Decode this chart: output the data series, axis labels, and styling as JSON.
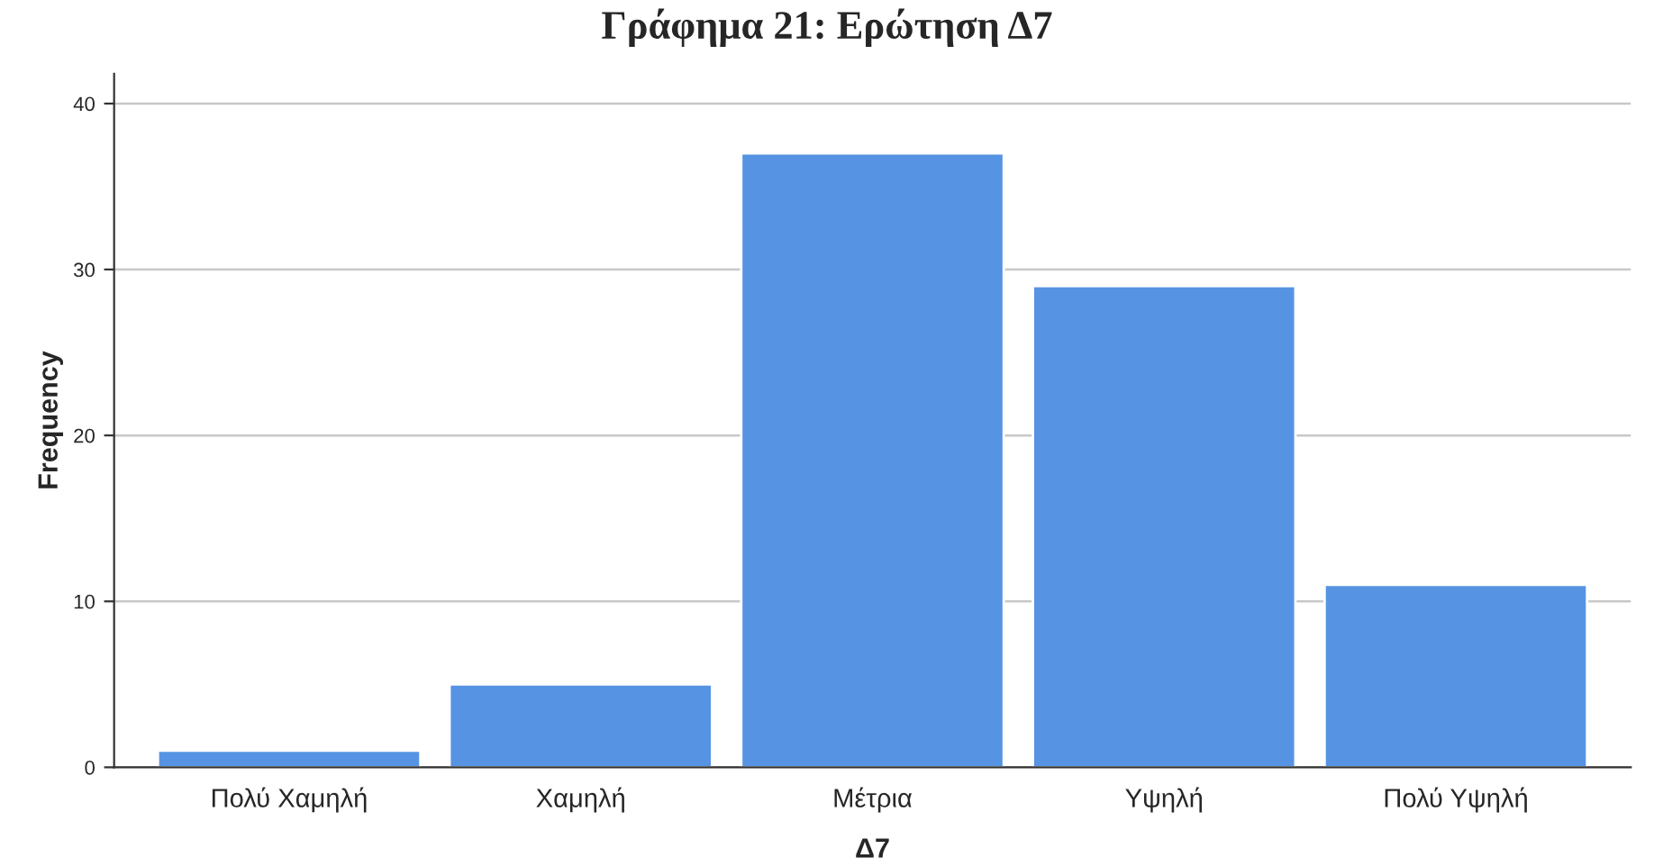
{
  "chart_data": {
    "type": "bar",
    "title": "Γράφημα 21: Ερώτηση Δ7",
    "xlabel": "Δ7",
    "ylabel": "Frequency",
    "categories": [
      "Πολύ Χαμηλή",
      "Χαμηλή",
      "Μέτρια",
      "Υψηλή",
      "Πολύ Υψηλή"
    ],
    "values": [
      1,
      5,
      37,
      29,
      11
    ],
    "color": "#5694e3",
    "ylim": [
      0,
      41.8
    ],
    "yticks": [
      0,
      10,
      20,
      30,
      40
    ],
    "grid": "y",
    "legend": false
  }
}
